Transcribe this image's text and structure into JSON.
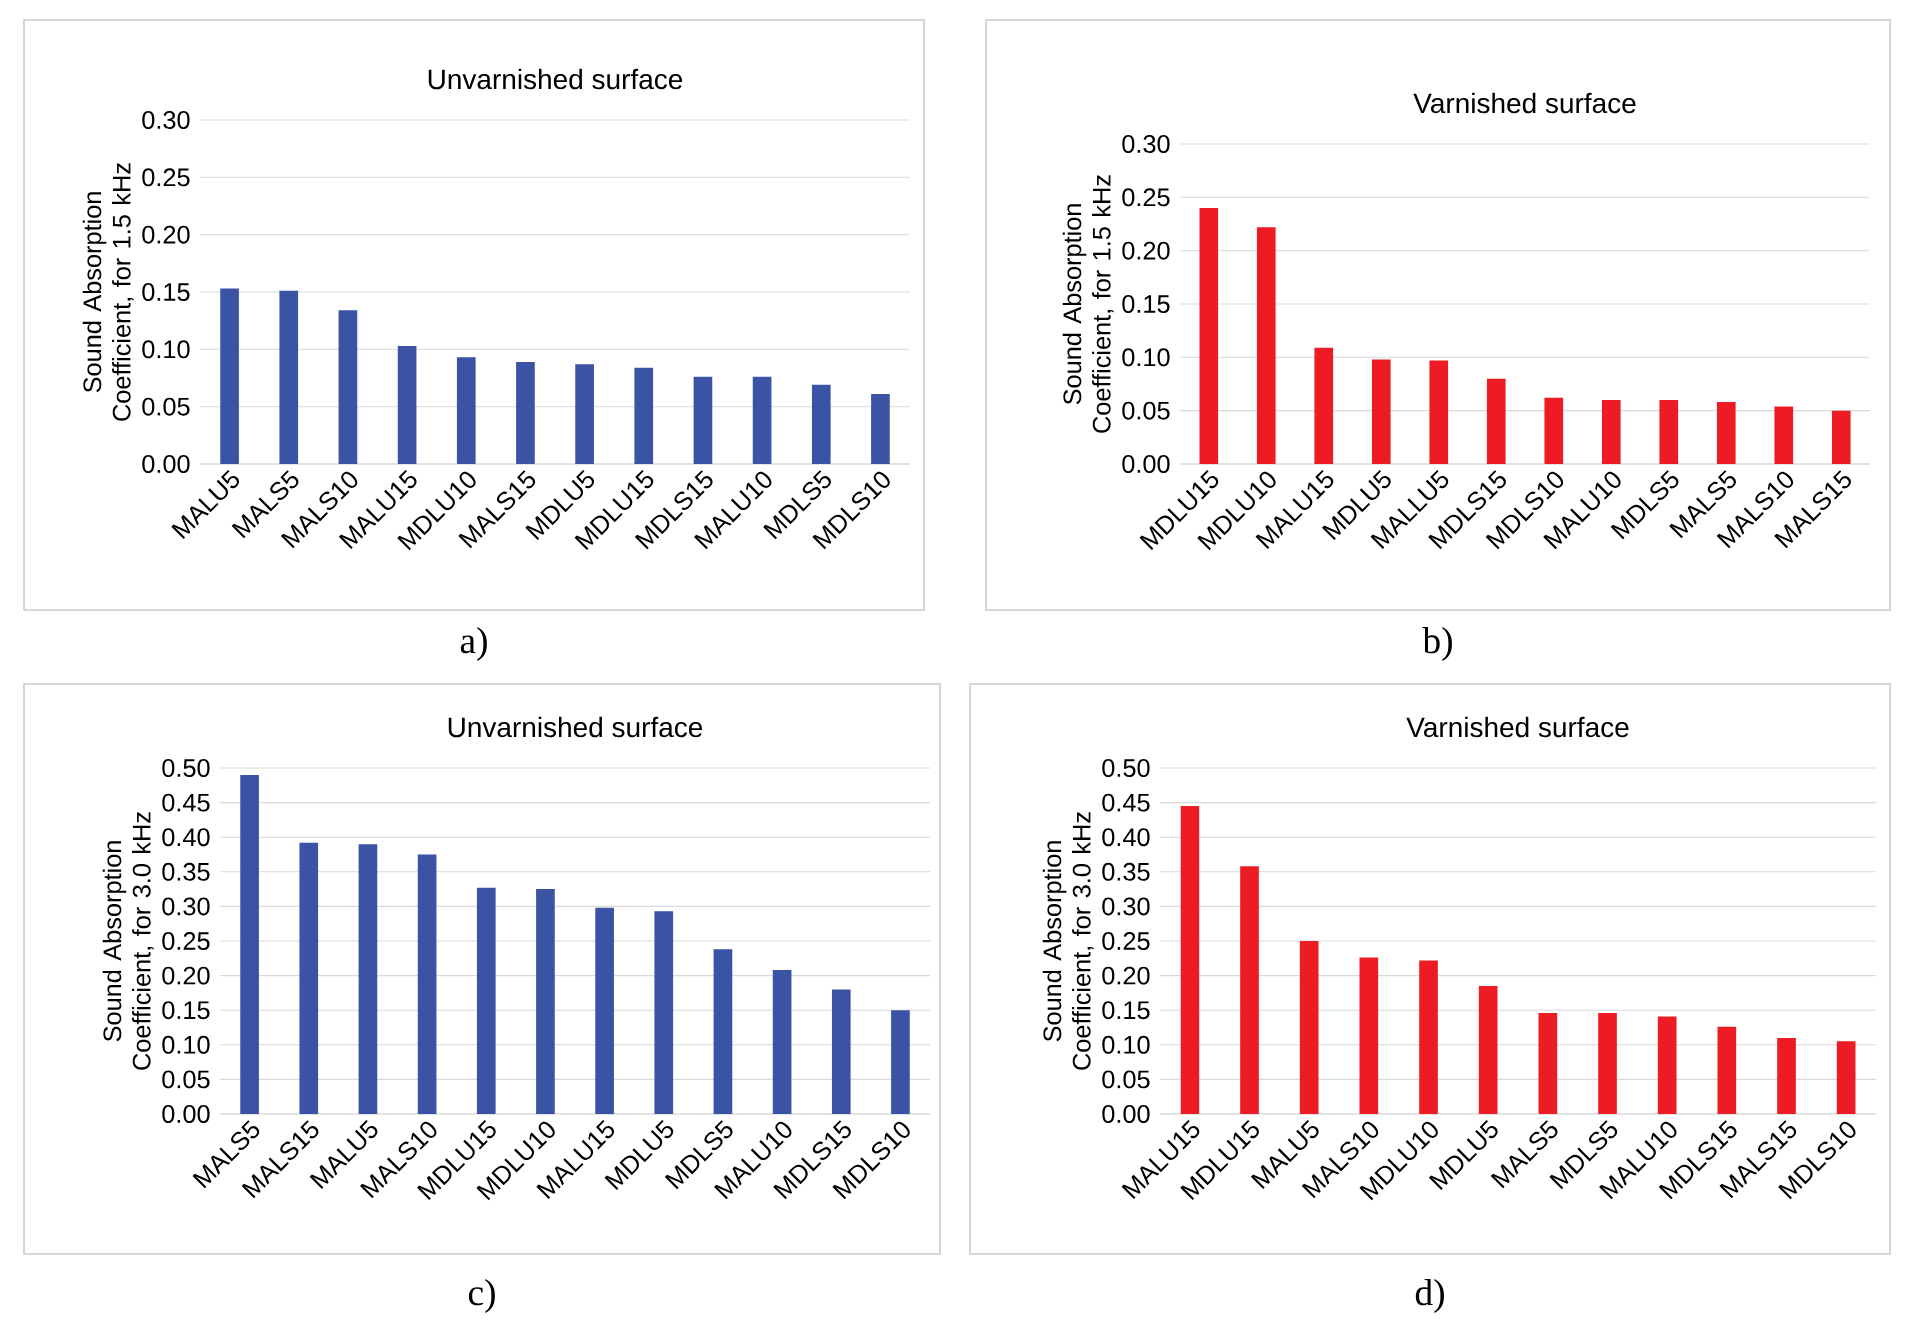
{
  "chart_data": [
    {
      "type": "bar",
      "title": "Unvarnished surface",
      "ylabel": "Sound Absorption Coefficient, for 1.5 kHz",
      "categories": [
        "MALU5",
        "MALS5",
        "MALS10",
        "MALU15",
        "MDLU10",
        "MALS15",
        "MDLU5",
        "MDLU15",
        "MDLS15",
        "MALU10",
        "MDLS5",
        "MDLS10"
      ],
      "values": [
        0.153,
        0.151,
        0.134,
        0.103,
        0.093,
        0.089,
        0.087,
        0.084,
        0.076,
        0.076,
        0.069,
        0.061
      ],
      "color": "#3a53a4",
      "ylim": [
        0,
        0.3
      ],
      "yticks": [
        {
          "value": 0,
          "label": "0.00"
        },
        {
          "value": 0.05,
          "label": "0.05"
        },
        {
          "value": 0.1,
          "label": "0.10"
        },
        {
          "value": 0.15,
          "label": "0.15"
        },
        {
          "value": 0.2,
          "label": "0.20"
        },
        {
          "value": 0.25,
          "label": "0.25"
        },
        {
          "value": 0.3,
          "label": "0.30"
        }
      ],
      "grid": "y",
      "annotations": [
        "a)"
      ]
    },
    {
      "type": "bar",
      "title": "Varnished surface",
      "ylabel": "Sound Absorption Coefficient, for 1.5 kHz",
      "categories": [
        "MDLU15",
        "MDLU10",
        "MALU15",
        "MDLU5",
        "MALLU5",
        "MDLS15",
        "MDLS10",
        "MALU10",
        "MDLS5",
        "MALS5",
        "MALS10",
        "MALS15"
      ],
      "values": [
        0.24,
        0.222,
        0.109,
        0.098,
        0.097,
        0.08,
        0.062,
        0.06,
        0.06,
        0.058,
        0.054,
        0.05
      ],
      "color": "#ed1c24",
      "ylim": [
        0,
        0.3
      ],
      "yticks": [
        {
          "value": 0,
          "label": "0.00"
        },
        {
          "value": 0.05,
          "label": "0.05"
        },
        {
          "value": 0.1,
          "label": "0.10"
        },
        {
          "value": 0.15,
          "label": "0.15"
        },
        {
          "value": 0.2,
          "label": "0.20"
        },
        {
          "value": 0.25,
          "label": "0.25"
        },
        {
          "value": 0.3,
          "label": "0.30"
        }
      ],
      "grid": "y",
      "annotations": [
        "b)"
      ]
    },
    {
      "type": "bar",
      "title": "Unvarnished surface",
      "ylabel": "Sound Absorption Coefficient, for 3.0 kHz",
      "categories": [
        "MALS5",
        "MALS15",
        "MALU5",
        "MALS10",
        "MDLU15",
        "MDLU10",
        "MALU15",
        "MDLU5",
        "MDLS5",
        "MALU10",
        "MDLS15",
        "MDLS10"
      ],
      "values": [
        0.49,
        0.392,
        0.39,
        0.375,
        0.327,
        0.325,
        0.298,
        0.293,
        0.238,
        0.208,
        0.18,
        0.15
      ],
      "color": "#3a53a4",
      "ylim": [
        0,
        0.5
      ],
      "yticks": [
        {
          "value": 0,
          "label": "0.00"
        },
        {
          "value": 0.05,
          "label": "0.05"
        },
        {
          "value": 0.1,
          "label": "0.10"
        },
        {
          "value": 0.15,
          "label": "0.15"
        },
        {
          "value": 0.2,
          "label": "0.20"
        },
        {
          "value": 0.25,
          "label": "0.25"
        },
        {
          "value": 0.3,
          "label": "0.30"
        },
        {
          "value": 0.35,
          "label": "0.35"
        },
        {
          "value": 0.4,
          "label": "0.40"
        },
        {
          "value": 0.45,
          "label": "0.45"
        },
        {
          "value": 0.5,
          "label": "0.50"
        }
      ],
      "grid": "y",
      "annotations": [
        "c)"
      ]
    },
    {
      "type": "bar",
      "title": "Varnished surface",
      "ylabel": "Sound Absorption Coefficient, for 3.0 kHz",
      "categories": [
        "MALU15",
        "MDLU15",
        "MALU5",
        "MALS10",
        "MDLU10",
        "MDLU5",
        "MALS5",
        "MDLS5",
        "MALU10",
        "MDLS15",
        "MALS15",
        "MDLS10"
      ],
      "values": [
        0.445,
        0.358,
        0.25,
        0.226,
        0.222,
        0.185,
        0.146,
        0.146,
        0.141,
        0.126,
        0.11,
        0.105
      ],
      "color": "#ed1c24",
      "ylim": [
        0,
        0.5
      ],
      "yticks": [
        {
          "value": 0,
          "label": "0.00"
        },
        {
          "value": 0.05,
          "label": "0.05"
        },
        {
          "value": 0.1,
          "label": "0.10"
        },
        {
          "value": 0.15,
          "label": "0.15"
        },
        {
          "value": 0.2,
          "label": "0.20"
        },
        {
          "value": 0.25,
          "label": "0.25"
        },
        {
          "value": 0.3,
          "label": "0.30"
        },
        {
          "value": 0.35,
          "label": "0.35"
        },
        {
          "value": 0.4,
          "label": "0.40"
        },
        {
          "value": 0.45,
          "label": "0.45"
        },
        {
          "value": 0.5,
          "label": "0.50"
        }
      ],
      "grid": "y",
      "annotations": [
        "d)"
      ]
    }
  ]
}
